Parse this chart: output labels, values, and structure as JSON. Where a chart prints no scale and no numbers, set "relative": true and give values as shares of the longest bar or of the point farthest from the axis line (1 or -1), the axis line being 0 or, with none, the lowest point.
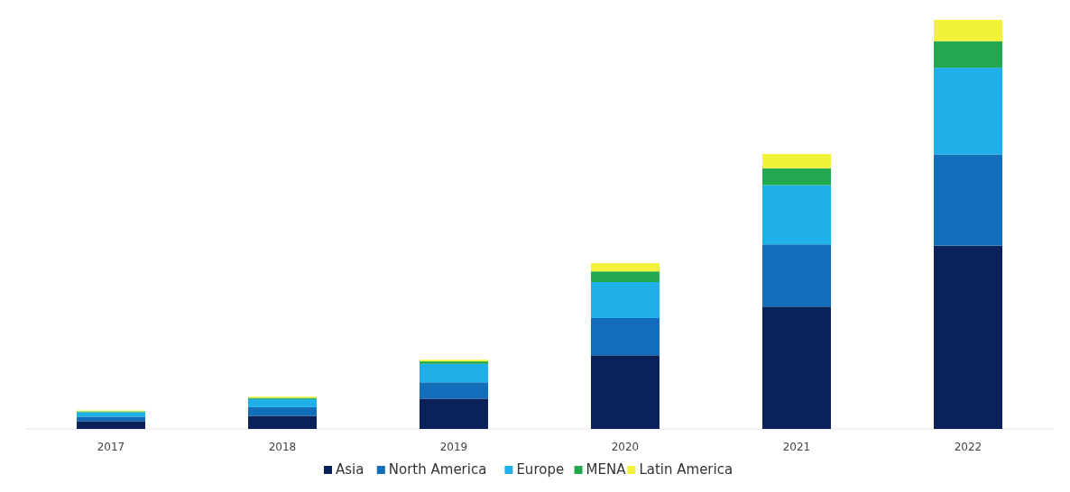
{
  "chart_data": {
    "type": "bar",
    "stacked": true,
    "relative": true,
    "legend": "bottom",
    "categories": [
      "2017",
      "2018",
      "2019",
      "2020",
      "2021",
      "2022"
    ],
    "series": [
      {
        "name": "Asia",
        "color": "#0a2159",
        "values": [
          0.019,
          0.032,
          0.074,
          0.18,
          0.299,
          0.448
        ]
      },
      {
        "name": "North America",
        "color": "#126dba",
        "values": [
          0.011,
          0.021,
          0.04,
          0.091,
          0.152,
          0.223
        ]
      },
      {
        "name": "Europe",
        "color": "#1fb0ea",
        "values": [
          0.011,
          0.02,
          0.045,
          0.088,
          0.145,
          0.212
        ]
      },
      {
        "name": "MENA",
        "color": "#22a84f",
        "values": [
          0.002,
          0.003,
          0.006,
          0.026,
          0.041,
          0.065
        ]
      },
      {
        "name": "Latin America",
        "color": "#f2f23a",
        "values": [
          0.002,
          0.003,
          0.004,
          0.02,
          0.035,
          0.052
        ]
      }
    ]
  }
}
